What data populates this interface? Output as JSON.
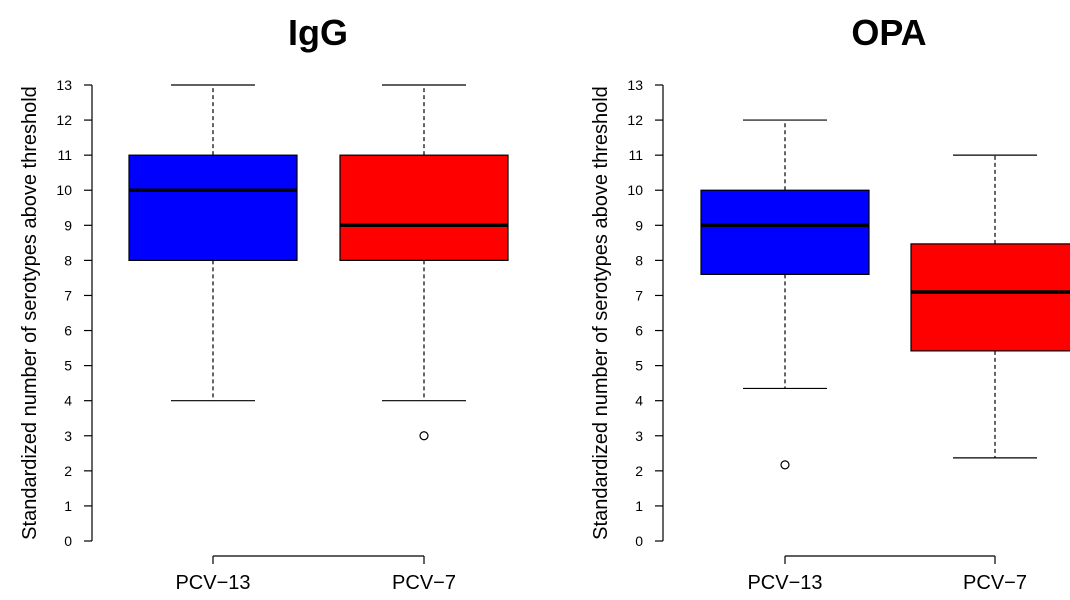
{
  "chart_data": [
    {
      "type": "box",
      "title": "IgG",
      "ylabel": "Standardized number of serotypes above threshold",
      "xlabel": "",
      "ylim": [
        0,
        13
      ],
      "yticks": [
        "0",
        "1",
        "2",
        "3",
        "4",
        "5",
        "6",
        "7",
        "8",
        "9",
        "10",
        "11",
        "12",
        "13"
      ],
      "grid": false,
      "categories": [
        "PCV−13",
        "PCV−7"
      ],
      "series": [
        {
          "whisker_low": 4,
          "q1": 8,
          "median": 10,
          "q3": 11,
          "whisker_high": 13,
          "outliers": [],
          "color": "#0000ff"
        },
        {
          "whisker_low": 4,
          "q1": 8,
          "median": 9,
          "q3": 11,
          "whisker_high": 13,
          "outliers": [
            3
          ],
          "color": "#ff0000"
        }
      ]
    },
    {
      "type": "box",
      "title": "OPA",
      "ylabel": "Standardized number of serotypes above threshold",
      "xlabel": "",
      "ylim": [
        0,
        13
      ],
      "yticks": [
        "0",
        "1",
        "2",
        "3",
        "4",
        "5",
        "6",
        "7",
        "8",
        "9",
        "10",
        "11",
        "12",
        "13"
      ],
      "grid": false,
      "categories": [
        "PCV−13",
        "PCV−7"
      ],
      "series": [
        {
          "whisker_low": 4.35,
          "q1": 7.6,
          "median": 9,
          "q3": 10,
          "whisker_high": 12,
          "outliers": [
            2.17
          ],
          "color": "#0000ff"
        },
        {
          "whisker_low": 2.37,
          "q1": 5.42,
          "median": 7.1,
          "q3": 8.47,
          "whisker_high": 11,
          "outliers": [],
          "color": "#ff0000"
        }
      ]
    }
  ]
}
